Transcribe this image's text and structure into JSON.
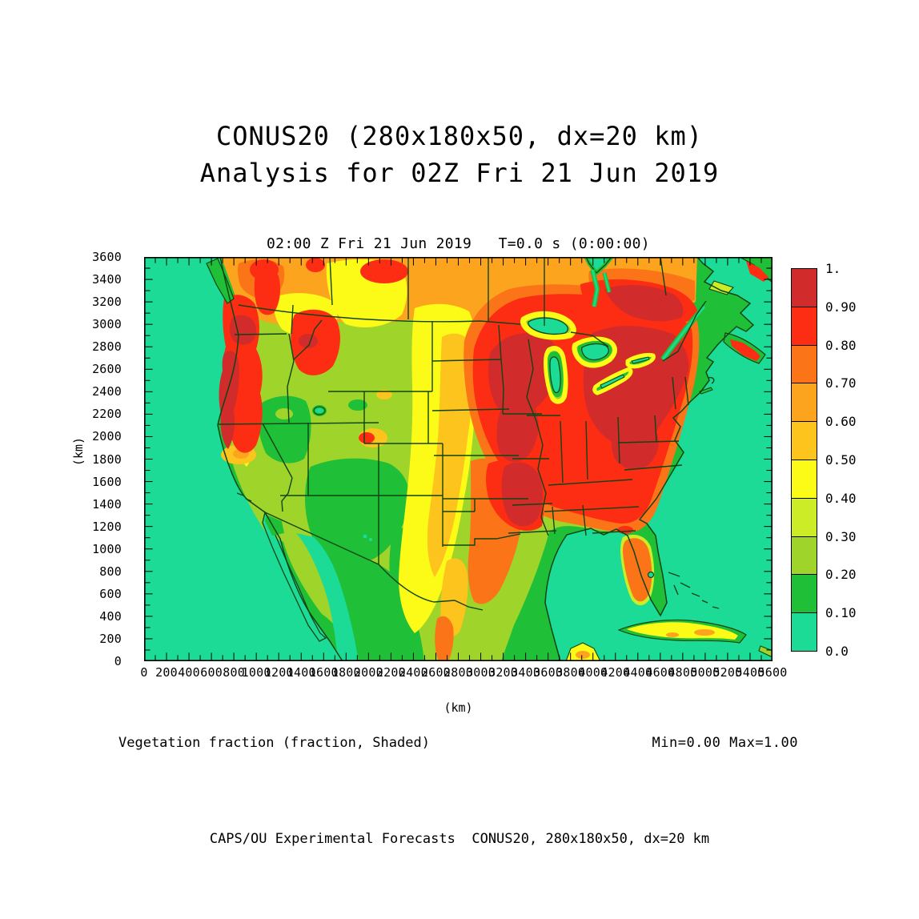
{
  "titles": {
    "line1": "CONUS20 (280x180x50, dx=20 km)",
    "line2": "Analysis for 02Z Fri 21 Jun 2019"
  },
  "plot": {
    "title": "02:00 Z Fri 21 Jun 2019   T=0.0 s (0:00:00)"
  },
  "axes": {
    "x": {
      "label": "(km)",
      "min": 0,
      "max": 5600,
      "minor_tick": 100,
      "label_interval": 200
    },
    "y": {
      "label": "(km)",
      "min": 0,
      "max": 3600,
      "minor_tick": 100,
      "label_interval": 200
    }
  },
  "colorbar": {
    "labels_top_to_bottom": [
      "1.",
      "0.90",
      "0.80",
      "0.70",
      "0.60",
      "0.50",
      "0.40",
      "0.30",
      "0.20",
      "0.10",
      "0.0"
    ],
    "colors_top_to_bottom": [
      "dr",
      "r",
      "o",
      "oy",
      "gold",
      "y",
      "lyg",
      "yg",
      "g",
      "t"
    ]
  },
  "captions": {
    "field": "Vegetation fraction (fraction, Shaded)",
    "range": "Min=0.00 Max=1.00"
  },
  "footer": "CAPS/OU Experimental Forecasts  CONUS20, 280x180x50, dx=20 km",
  "chart_data": {
    "type": "heatmap",
    "subtype": "filled_contour_map",
    "title": "02:00 Z Fri 21 Jun 2019   T=0.0 s (0:00:00)",
    "field": "Vegetation fraction",
    "units": "fraction",
    "min": 0.0,
    "max": 1.0,
    "levels": [
      0.0,
      0.1,
      0.2,
      0.3,
      0.4,
      0.5,
      0.6,
      0.7,
      0.8,
      0.9,
      1.0
    ],
    "palette": {
      "t": "#1BDB96",
      "g": "#1FBF38",
      "yg": "#9FD42A",
      "lyg": "#CBEC26",
      "y": "#FBFB17",
      "gold": "#FCC41C",
      "oy": "#FCA41E",
      "o": "#FB7418",
      "r": "#FC2D12",
      "dr": "#D22B2B"
    },
    "border_color": "#114414",
    "frame_color": "#000000",
    "x_range_km": [
      0,
      5600
    ],
    "y_range_km": [
      0,
      3600
    ],
    "grid": "280x180x50, dx=20 km",
    "region_summary": [
      {
        "region": "Oceans, Great Lakes, Baja California",
        "value_range": "0.0-0.1"
      },
      {
        "region": "Pacific Northwest coast and Cascades (WA/OR/N CA)",
        "value_range": "0.8-1.0"
      },
      {
        "region": "Great Basin / Desert Southwest (NV, AZ, NM)",
        "value_range": "0.1-0.3"
      },
      {
        "region": "Northern Rockies (ID/MT)",
        "value_range": "0.7-1.0"
      },
      {
        "region": "Great Plains north-south band",
        "value_range": "0.4-0.6"
      },
      {
        "region": "West Texas and interior Mexico",
        "value_range": "0.1-0.3"
      },
      {
        "region": "Eastern US: Midwest, Appalachians, Northeast, Lower Mississippi",
        "value_range": "0.8-1.0"
      },
      {
        "region": "Gulf Coast states",
        "value_range": "0.7-1.0"
      },
      {
        "region": "Florida peninsula",
        "value_range": "0.4-0.8"
      },
      {
        "region": "Southern Canada band",
        "value_range": "0.5-0.9"
      },
      {
        "region": "Cuba",
        "value_range": "0.3-0.7"
      }
    ]
  }
}
